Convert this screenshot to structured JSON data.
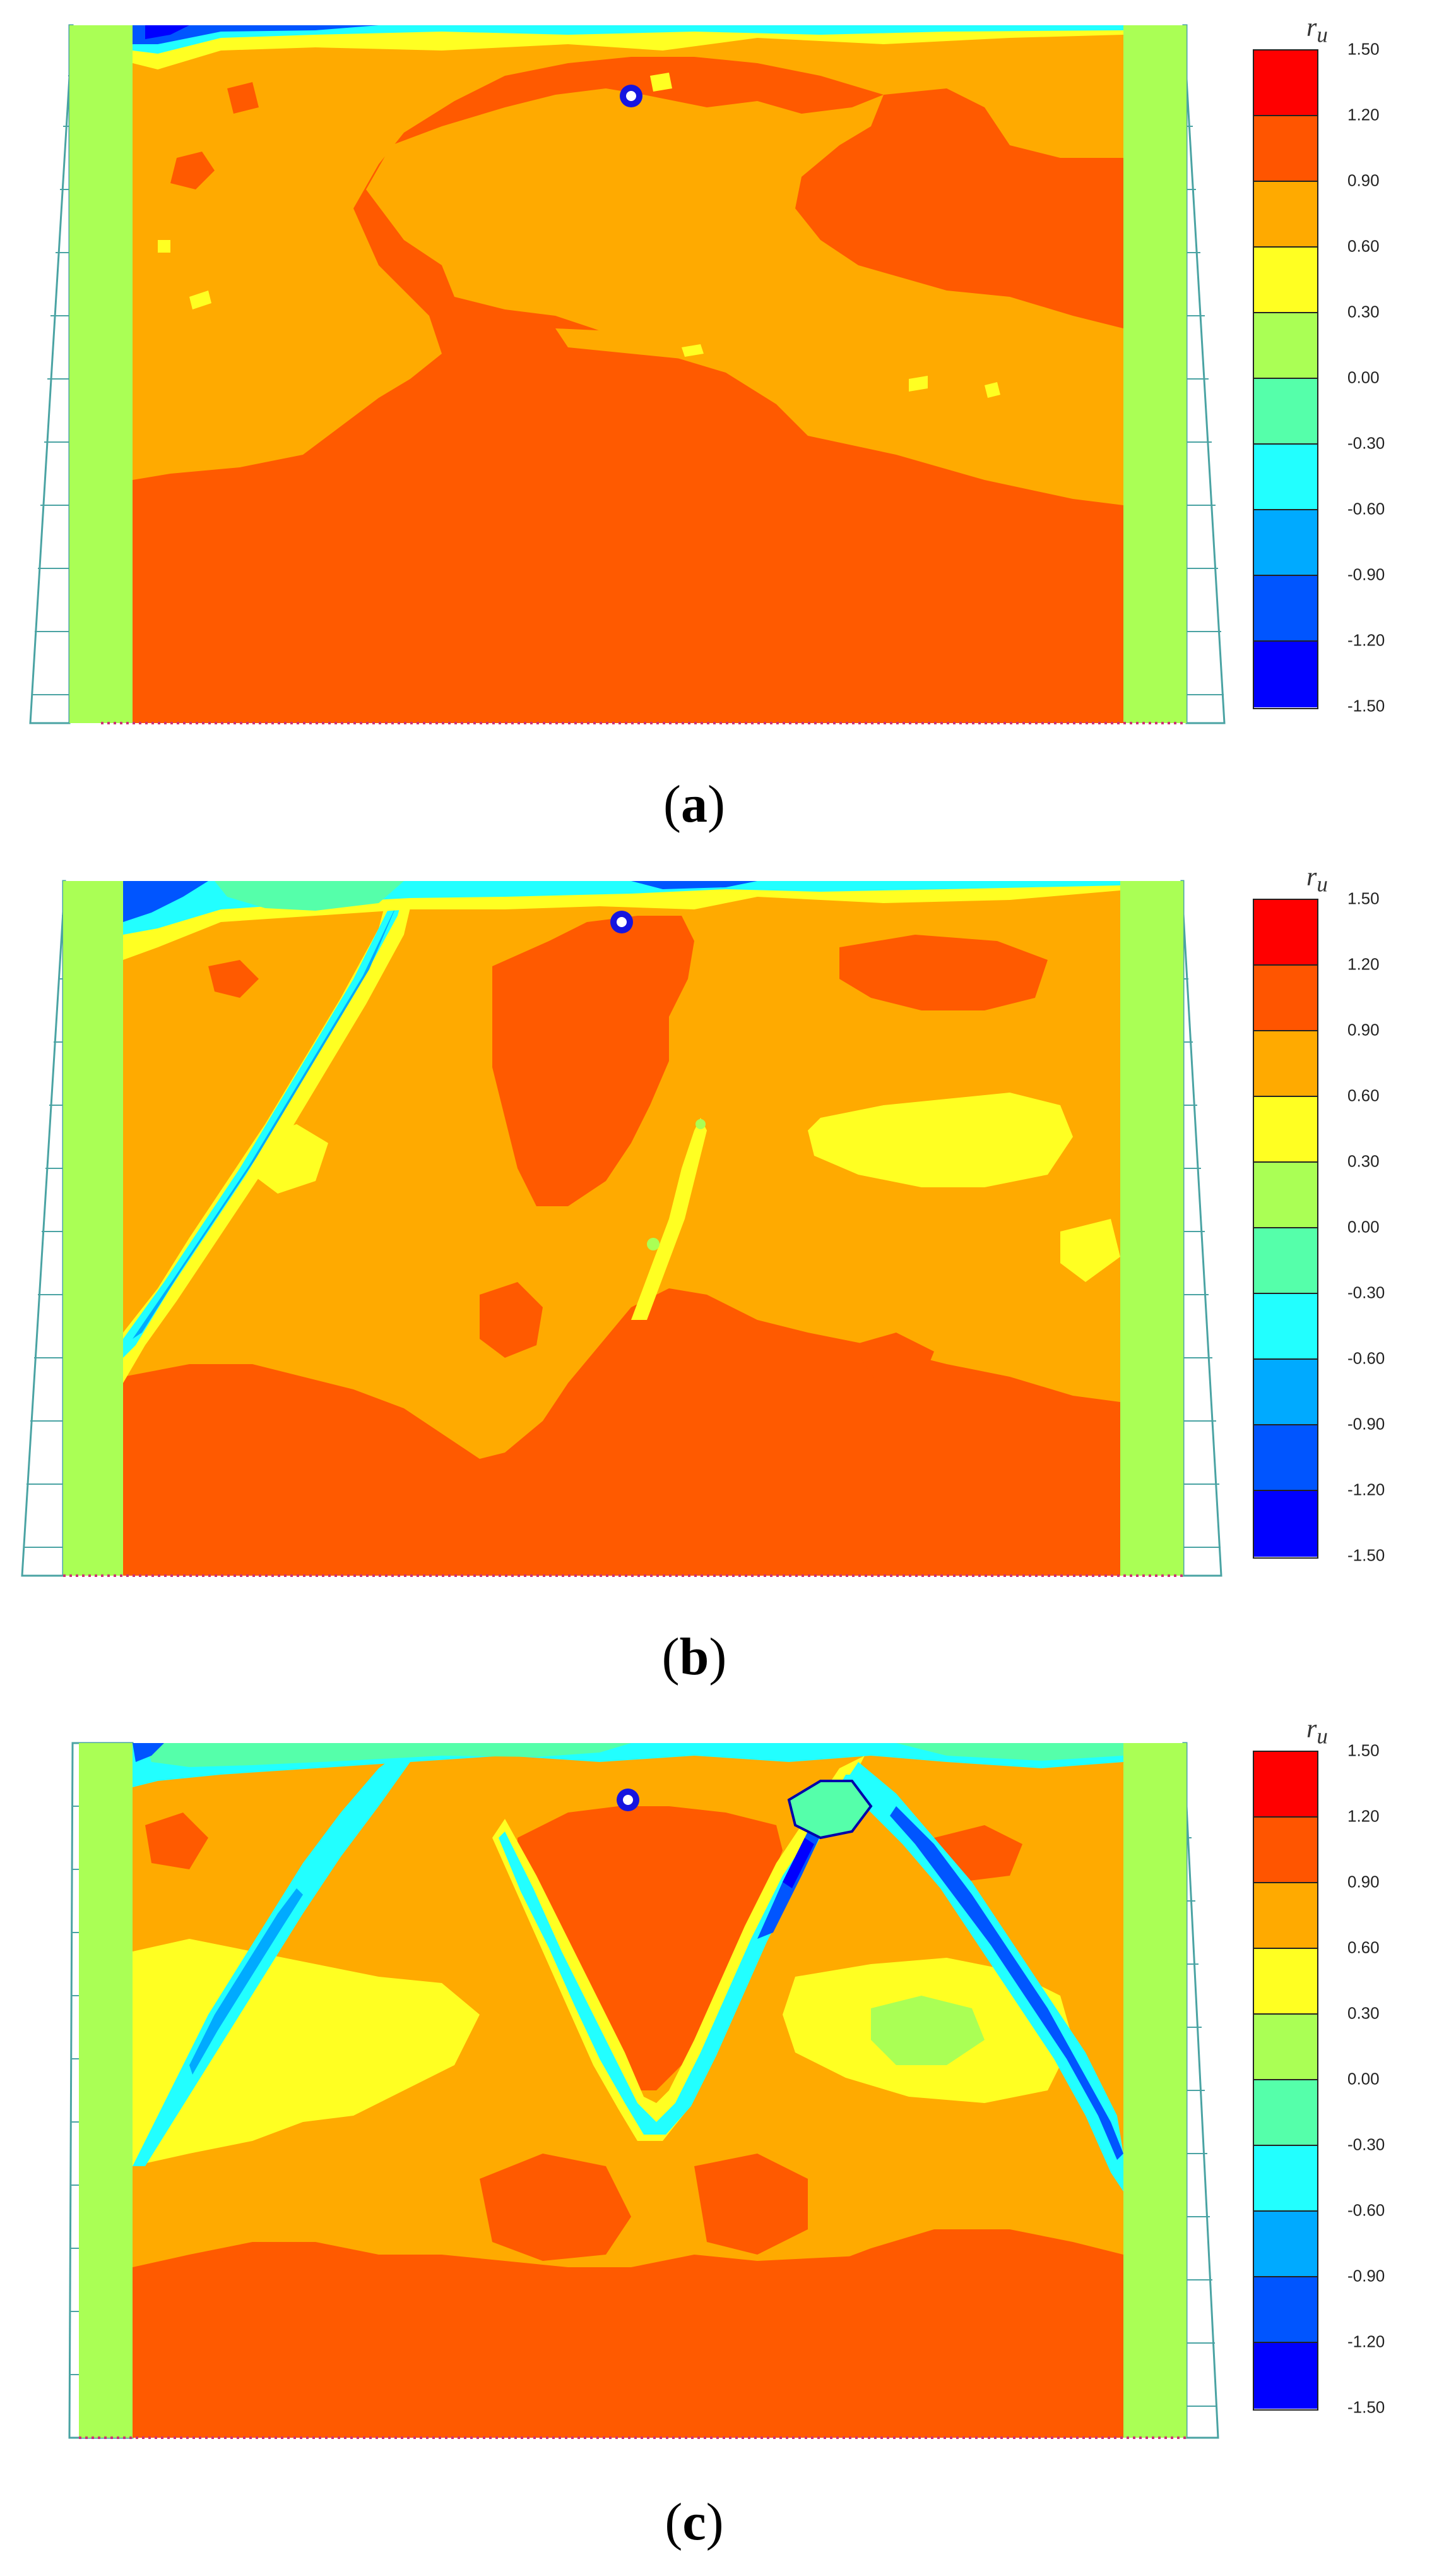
{
  "figure": {
    "legend_title": "r",
    "legend_title_sub": "u",
    "legend_ticks": [
      "1.50",
      "1.20",
      "0.90",
      "0.60",
      "0.30",
      "0.00",
      "-0.30",
      "-0.60",
      "-0.90",
      "-1.20",
      "-1.50"
    ],
    "legend_colors": [
      "#ff0000",
      "#ff5500",
      "#ffaa00",
      "#ffff22",
      "#aaff55",
      "#55ffaa",
      "#22ffff",
      "#00aaff",
      "#0055ff",
      "#0000ff"
    ],
    "colors": {
      "high": "#ff5a00",
      "orange": "#ffaa00",
      "yellow": "#ffff22",
      "green": "#aaff55",
      "teal": "#55ffaa",
      "cyan": "#22ffff",
      "lightblue": "#00aaff",
      "blue": "#0055ff",
      "darkblue": "#0000ff",
      "grid": "#4aa3a3",
      "base_dots": "#cc3377",
      "marker": "#1515e0"
    }
  },
  "panels": [
    {
      "id": "a",
      "label_open": "(",
      "label_letter": "a",
      "label_close": ")"
    },
    {
      "id": "b",
      "label_open": "(",
      "label_letter": "b",
      "label_close": ")"
    },
    {
      "id": "c",
      "label_open": "(",
      "label_letter": "c",
      "label_close": ")"
    }
  ]
}
